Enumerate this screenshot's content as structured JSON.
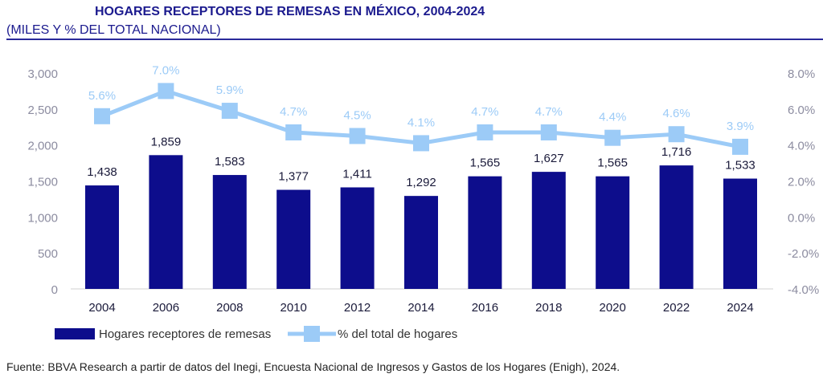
{
  "header": {
    "title": "HOGARES RECEPTORES DE REMESAS EN MÉXICO, 2004-2024",
    "subtitle": "(MILES Y % DEL TOTAL NACIONAL)"
  },
  "footer": "Fuente: BBVA Research a partir de datos del Inegi, Encuesta Nacional de Ingresos y Gastos de los Hogares (Enigh), 2024.",
  "chart_data": {
    "type": "bar+line",
    "categories": [
      "2004",
      "2006",
      "2008",
      "2010",
      "2012",
      "2014",
      "2016",
      "2018",
      "2020",
      "2022",
      "2024"
    ],
    "series": [
      {
        "name": "Hogares receptores de remesas",
        "type": "bar",
        "axis": "left",
        "color": "#0d0d8c",
        "values": [
          1438,
          1859,
          1583,
          1377,
          1411,
          1292,
          1565,
          1627,
          1565,
          1716,
          1533
        ],
        "labels": [
          "1,438",
          "1,859",
          "1,583",
          "1,377",
          "1,411",
          "1,292",
          "1,565",
          "1,627",
          "1,565",
          "1,716",
          "1,533"
        ]
      },
      {
        "name": "% del total de hogares",
        "type": "line",
        "axis": "right",
        "color": "#9ccbf7",
        "values": [
          5.6,
          7.0,
          5.9,
          4.7,
          4.5,
          4.1,
          4.7,
          4.7,
          4.4,
          4.6,
          3.9
        ],
        "labels": [
          "5.6%",
          "7.0%",
          "5.9%",
          "4.7%",
          "4.5%",
          "4.1%",
          "4.7%",
          "4.7%",
          "4.4%",
          "4.6%",
          "3.9%"
        ]
      }
    ],
    "left_axis": {
      "ylim": [
        0,
        3000
      ],
      "ticks": [
        "0",
        "500",
        "1,000",
        "1,500",
        "2,000",
        "2,500",
        "3,000"
      ]
    },
    "right_axis": {
      "ylim": [
        -4,
        8
      ],
      "ticks": [
        "-4.0%",
        "-2.0%",
        "0.0%",
        "2.0%",
        "4.0%",
        "6.0%",
        "8.0%"
      ]
    },
    "grid": false,
    "legend": "bottom"
  }
}
